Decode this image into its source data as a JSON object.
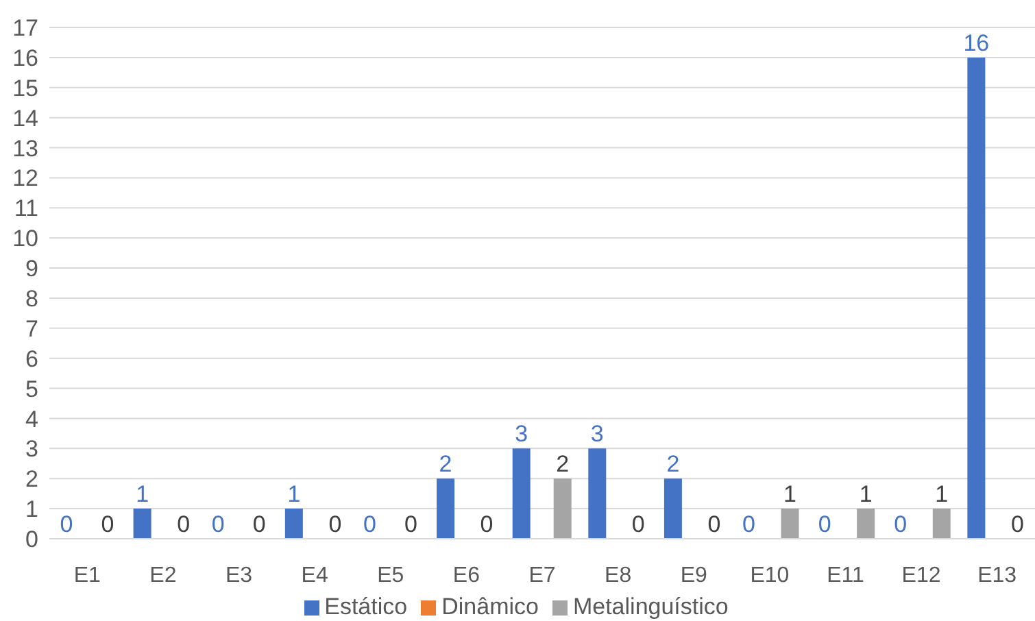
{
  "chart_data": {
    "type": "bar",
    "categories": [
      "E1",
      "E2",
      "E3",
      "E4",
      "E5",
      "E6",
      "E7",
      "E8",
      "E9",
      "E10",
      "E11",
      "E12",
      "E13"
    ],
    "series": [
      {
        "name": "Estático",
        "color": "#4472c4",
        "values": [
          0,
          1,
          0,
          1,
          0,
          2,
          3,
          3,
          2,
          0,
          0,
          0,
          16
        ],
        "value_labels": [
          "0",
          "1",
          "0",
          "1",
          "0",
          "2",
          "3",
          "3",
          "2",
          "0",
          "0",
          "0",
          "16"
        ]
      },
      {
        "name": "Dinâmico",
        "color": "#ed7d31",
        "values": [
          0,
          0,
          0,
          0,
          0,
          0,
          0,
          0,
          0,
          0,
          0,
          0,
          0
        ],
        "value_labels": [
          null,
          null,
          null,
          null,
          null,
          null,
          null,
          null,
          null,
          null,
          null,
          null,
          null
        ]
      },
      {
        "name": "Metalinguístico",
        "color": "#a5a5a5",
        "values": [
          0,
          0,
          0,
          0,
          0,
          0,
          2,
          0,
          0,
          1,
          1,
          1,
          0
        ],
        "value_labels": [
          "0",
          "0",
          "0",
          "0",
          "0",
          "0",
          "2",
          "0",
          "0",
          "1",
          "1",
          "1",
          "0"
        ]
      }
    ],
    "ylim": [
      0,
      17
    ],
    "yticks": [
      0,
      1,
      2,
      3,
      4,
      5,
      6,
      7,
      8,
      9,
      10,
      11,
      12,
      13,
      14,
      15,
      16,
      17
    ],
    "grid": "y",
    "legend": "bottom"
  }
}
